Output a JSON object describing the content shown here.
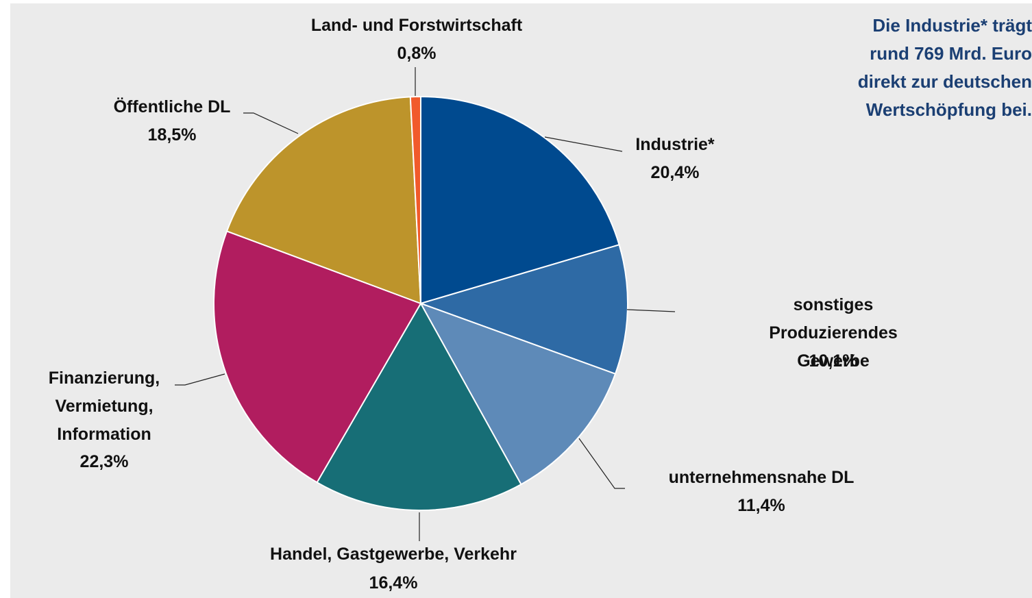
{
  "chart_data": {
    "type": "pie",
    "annotation": "Die Industrie* trägt\nrund 769 Mrd. Euro\ndirekt zur deutschen\nWertschöpfung bei.",
    "categories": [
      "Industrie*",
      "sonstiges Produzierendes\nGewerbe",
      "unternehmensnahe DL",
      "Handel, Gastgewerbe, Verkehr",
      "Finanzierung,\nVermietung,\nInformation",
      "Öffentliche DL",
      "Land- und Forstwirtschaft"
    ],
    "values": [
      20.4,
      10.1,
      11.4,
      16.4,
      22.3,
      18.5,
      0.8
    ],
    "value_labels": [
      "20,4%",
      "10,1%",
      "11,4%",
      "16,4%",
      "22,3%",
      "18,5%",
      "0,8%"
    ],
    "colors": [
      "#004a8f",
      "#2e6aa5",
      "#5e8ab8",
      "#176e76",
      "#b11d5f",
      "#bd942b",
      "#f15a2b"
    ]
  }
}
